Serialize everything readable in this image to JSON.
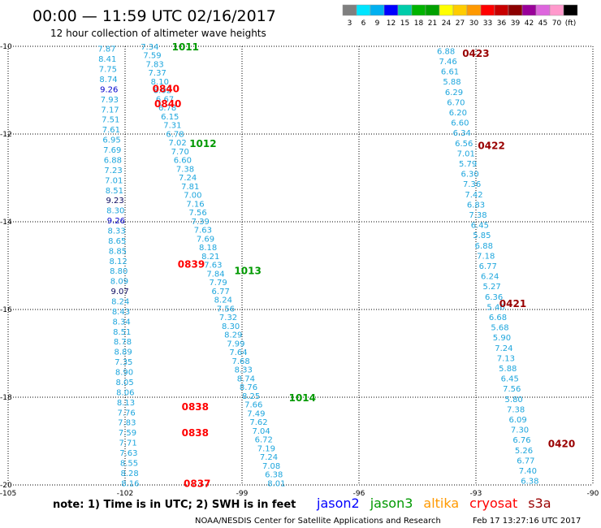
{
  "header": {
    "title": "00:00 — 11:59 UTC 02/16/2017",
    "subtitle": "12 hour collection of altimeter wave heights"
  },
  "color_scale": {
    "labels": [
      "3",
      "6",
      "9",
      "12",
      "15",
      "18",
      "21",
      "24",
      "27",
      "30",
      "33",
      "36",
      "39",
      "42",
      "45",
      "70",
      "(ft)"
    ],
    "colors": [
      "#7f7f7f",
      "#00e5ff",
      "#00b0f0",
      "#0000ff",
      "#00ccaa",
      "#00b400",
      "#00a000",
      "#ffff00",
      "#ffcc00",
      "#ff9900",
      "#ff0000",
      "#c80000",
      "#8b0000",
      "#990099",
      "#dd66dd",
      "#ff99cc",
      "#000000"
    ]
  },
  "footer": {
    "note": "note: 1) Time is in UTC; 2) SWH is in feet",
    "satellites": [
      {
        "name": "jason2",
        "color": "#0000ff"
      },
      {
        "name": "jason3",
        "color": "#009900"
      },
      {
        "name": "altika",
        "color": "#ff9900"
      },
      {
        "name": "cryosat",
        "color": "#ff0000"
      },
      {
        "name": "s3a",
        "color": "#990000"
      }
    ],
    "credit": "NOAA/NESDIS Center for Satellite Applications and Research",
    "generated": "Feb 17 13:27:16 UTC 2017"
  },
  "chart_data": {
    "type": "scatter",
    "title": "00:00 — 11:59 UTC 02/16/2017",
    "subtitle": "12 hour collection of altimeter wave heights",
    "xlim": [
      -105,
      -90
    ],
    "ylim": [
      -20,
      -10
    ],
    "x_ticks": [
      -105,
      -102,
      -99,
      -96,
      -93,
      -90
    ],
    "x_tick_labels": [
      "-105",
      "-102",
      "-99",
      "-96",
      "-93",
      "-90"
    ],
    "y_ticks": [
      -10,
      -12,
      -14,
      -16,
      -18,
      -20
    ],
    "y_tick_labels": [
      "-10",
      "-12",
      "-14",
      "-16",
      "-18",
      "-20"
    ],
    "grid": true,
    "palette": {
      "light": "#1ea6dd",
      "blue": "#0000cc",
      "dark_navy": "#0a0a60",
      "red": "#ff0000",
      "green": "#009900",
      "darkred": "#990000"
    },
    "tracks": [
      {
        "satellite": "cryosat",
        "lon_start": -102.7,
        "lon_end": -102.1,
        "lat_start": -10.05,
        "lat_end": -19.95,
        "values": [
          "7.87",
          "8.41",
          "7.75",
          "8.74",
          "9.26",
          "7.93",
          "7.17",
          "7.51",
          "7.61",
          "6.95",
          "7.69",
          "6.88",
          "7.23",
          "7.01",
          "8.51",
          "9.23",
          "8.30",
          "9.26",
          "8.33",
          "8.65",
          "8.85",
          "8.12",
          "8.80",
          "8.09",
          "9.07",
          "8.24",
          "8.43",
          "8.34",
          "8.51",
          "8.78",
          "8.89",
          "7.35",
          "8.90",
          "8.05",
          "8.06",
          "8.13",
          "7.76",
          "7.83",
          "7.59",
          "7.71",
          "7.63",
          "8.55",
          "8.28",
          "8.16"
        ],
        "value_colors": {
          "4": "blue",
          "15": "dark_navy",
          "17": "blue",
          "24": "dark_navy"
        },
        "time_labels": [
          {
            "text": "0840",
            "lat": -10.95,
            "lon": -101.3,
            "color": "red"
          },
          {
            "text": "0840",
            "lat": -11.3,
            "lon": -101.25,
            "color": "red"
          },
          {
            "text": "0839",
            "lat": -14.95,
            "lon": -100.65,
            "color": "red"
          },
          {
            "text": "0838",
            "lat": -18.2,
            "lon": -100.55,
            "color": "red"
          },
          {
            "text": "0838",
            "lat": -18.8,
            "lon": -100.55,
            "color": "red"
          },
          {
            "text": "0837",
            "lat": -19.95,
            "lon": -100.5,
            "color": "red"
          }
        ]
      },
      {
        "satellite": "jason3",
        "lon_start": -101.6,
        "lon_end": -98.35,
        "lat_start": -10.0,
        "lat_end": -19.95,
        "values": [
          "7.34",
          "7.59",
          "7.83",
          "7.37",
          "8.10",
          "8.02",
          "6.67",
          "6.78",
          "6.15",
          "7.31",
          "6.78",
          "7.02",
          "7.70",
          "6.60",
          "7.38",
          "7.24",
          "7.81",
          "7.00",
          "7.16",
          "7.56",
          "7.39",
          "7.63",
          "7.69",
          "8.18",
          "8.21",
          "7.63",
          "7.84",
          "7.79",
          "6.77",
          "8.24",
          "7.56",
          "7.32",
          "8.30",
          "8.29",
          "7.99",
          "7.64",
          "7.68",
          "8.33",
          "8.74",
          "8.76",
          "8.25",
          "7.66",
          "7.49",
          "7.62",
          "7.04",
          "6.72",
          "7.19",
          "7.24",
          "7.08",
          "6.38",
          "8.01"
        ],
        "value_colors": {},
        "time_labels": [
          {
            "text": "1011",
            "lat": -10.0,
            "lon": -100.8,
            "color": "green"
          },
          {
            "text": "1012",
            "lat": -12.2,
            "lon": -100.35,
            "color": "green"
          },
          {
            "text": "1013",
            "lat": -15.1,
            "lon": -99.2,
            "color": "green"
          },
          {
            "text": "1014",
            "lat": -18.0,
            "lon": -97.8,
            "color": "green"
          }
        ]
      },
      {
        "satellite": "s3a",
        "lon_start": -94.0,
        "lon_end": -91.85,
        "lat_start": -10.1,
        "lat_end": -19.9,
        "values": [
          "6.88",
          "7.46",
          "6.61",
          "5.88",
          "6.29",
          "6.70",
          "6.20",
          "6.60",
          "6.34",
          "6.56",
          "7.01",
          "5.79",
          "6.30",
          "7.36",
          "7.42",
          "6.83",
          "7.38",
          "6.45",
          "5.85",
          "6.88",
          "7.18",
          "6.77",
          "6.24",
          "5.27",
          "6.36",
          "5.46",
          "6.68",
          "5.68",
          "5.90",
          "7.24",
          "7.13",
          "5.88",
          "6.45",
          "7.56",
          "5.80",
          "7.38",
          "6.09",
          "7.30",
          "6.76",
          "5.26",
          "6.77",
          "7.40",
          "6.38"
        ],
        "value_colors": {},
        "time_labels": [
          {
            "text": "0423",
            "lat": -10.15,
            "lon": -93.35,
            "color": "darkred"
          },
          {
            "text": "0422",
            "lat": -12.25,
            "lon": -92.95,
            "color": "darkred"
          },
          {
            "text": "0421",
            "lat": -15.85,
            "lon": -92.4,
            "color": "darkred"
          },
          {
            "text": "0420",
            "lat": -19.05,
            "lon": -91.15,
            "color": "darkred"
          }
        ]
      }
    ]
  }
}
